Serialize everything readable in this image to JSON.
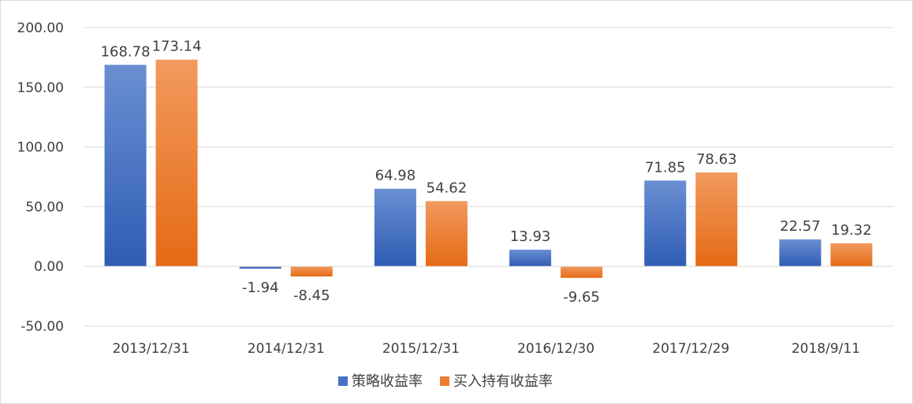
{
  "chart_data": {
    "type": "bar",
    "title": "",
    "xlabel": "",
    "ylabel": "",
    "categories": [
      "2013/12/31",
      "2014/12/31",
      "2015/12/31",
      "2016/12/30",
      "2017/12/29",
      "2018/9/11"
    ],
    "series": [
      {
        "name": "策略收益率",
        "values": [
          168.78,
          -1.94,
          64.98,
          13.93,
          71.85,
          22.57
        ],
        "labels": [
          "168.78",
          "-1.94",
          "64.98",
          "13.93",
          "71.85",
          "22.57"
        ],
        "color": "#4472c4",
        "color_light": "#6a8fd2",
        "color_dark": "#2f5cb4"
      },
      {
        "name": "买入持有收益率",
        "values": [
          173.14,
          -8.45,
          54.62,
          -9.65,
          78.63,
          19.32
        ],
        "labels": [
          "173.14",
          "-8.45",
          "54.62",
          "-9.65",
          "78.63",
          "19.32"
        ],
        "color": "#ed7d31",
        "color_light": "#f29a5e",
        "color_dark": "#e56a15"
      }
    ],
    "ylim": [
      -50,
      200
    ],
    "yticks": [
      200,
      150,
      100,
      50,
      0,
      -50
    ],
    "ytick_labels": [
      "200.00",
      "150.00",
      "100.00",
      "50.00",
      "0.00",
      "-50.00"
    ],
    "grid": true,
    "legend_position": "bottom"
  }
}
